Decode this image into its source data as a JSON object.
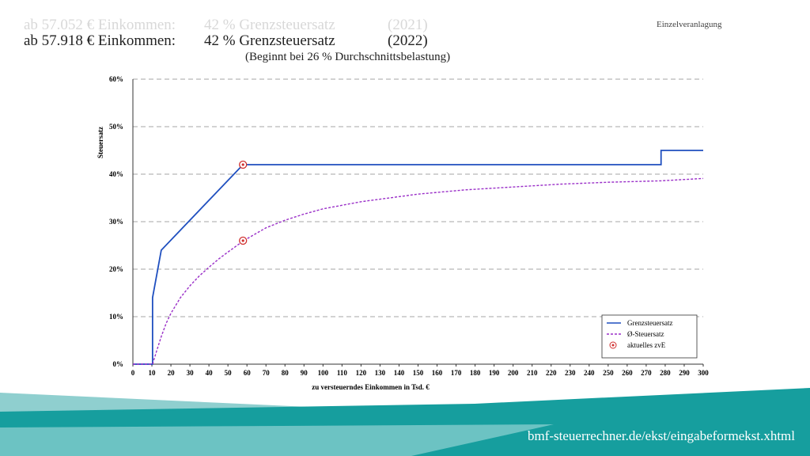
{
  "slide": {
    "line_2021": [
      "ab 57.052 € Einkommen:",
      "42 % Grenzsteuersatz",
      "(2021)"
    ],
    "line_2022": [
      "ab 57.918 € Einkommen:",
      "42 % Grenzsteuersatz",
      "(2022)"
    ],
    "subtitle": "(Beginnt bei 26 % Durchschnittsbelastung)",
    "corner_note": "Einzelveranlagung",
    "footer": "bmf-steuerrechner.de/ekst/eingabeformekst.xhtml"
  },
  "chart_data": {
    "type": "line",
    "xlabel": "zu versteuerndes Einkommen in Tsd. €",
    "ylabel": "Steuersatz",
    "xlim": [
      0,
      300
    ],
    "xticks": [
      0,
      10,
      20,
      30,
      40,
      50,
      60,
      70,
      80,
      90,
      100,
      110,
      120,
      130,
      140,
      150,
      160,
      170,
      180,
      190,
      200,
      210,
      220,
      230,
      240,
      250,
      260,
      270,
      280,
      290,
      300
    ],
    "ylim": [
      0,
      60
    ],
    "yticks": [
      {
        "value": 0,
        "label": "0%"
      },
      {
        "value": 10,
        "label": "10%"
      },
      {
        "value": 20,
        "label": "20%"
      },
      {
        "value": 30,
        "label": "30%"
      },
      {
        "value": 40,
        "label": "40%"
      },
      {
        "value": 50,
        "label": "50%"
      },
      {
        "value": 60,
        "label": "60%"
      }
    ],
    "grid": true,
    "legend": "lower right",
    "series": [
      {
        "name": "Grenzsteuersatz",
        "color": "#1f4fbf",
        "dash": false,
        "x": [
          0,
          10.347,
          10.347,
          14.926,
          57.918,
          277.826,
          277.826,
          300
        ],
        "values": [
          0,
          0,
          14,
          24,
          42,
          42,
          45,
          45
        ]
      },
      {
        "name": "Ø-Steuersatz",
        "color": "#9a2fc8",
        "dash": true,
        "x": [
          0,
          10.347,
          12.5,
          15,
          17.5,
          20,
          25,
          30,
          35,
          40,
          45,
          50,
          57.918,
          60,
          70,
          80,
          90,
          100,
          120,
          150,
          175,
          200,
          225,
          250,
          277.826,
          300
        ],
        "values": [
          0,
          0,
          2.8,
          5.9,
          8.6,
          10.7,
          14.0,
          16.5,
          18.6,
          20.4,
          22.1,
          23.6,
          25.9,
          26.4,
          28.7,
          30.3,
          31.6,
          32.7,
          34.2,
          35.8,
          36.7,
          37.3,
          37.9,
          38.3,
          38.6,
          39.1
        ]
      },
      {
        "name": "aktuelles zvE",
        "color": "#d0302f",
        "marker": "circle",
        "x": [
          57.918,
          57.918
        ],
        "values": [
          42,
          26
        ]
      }
    ]
  }
}
